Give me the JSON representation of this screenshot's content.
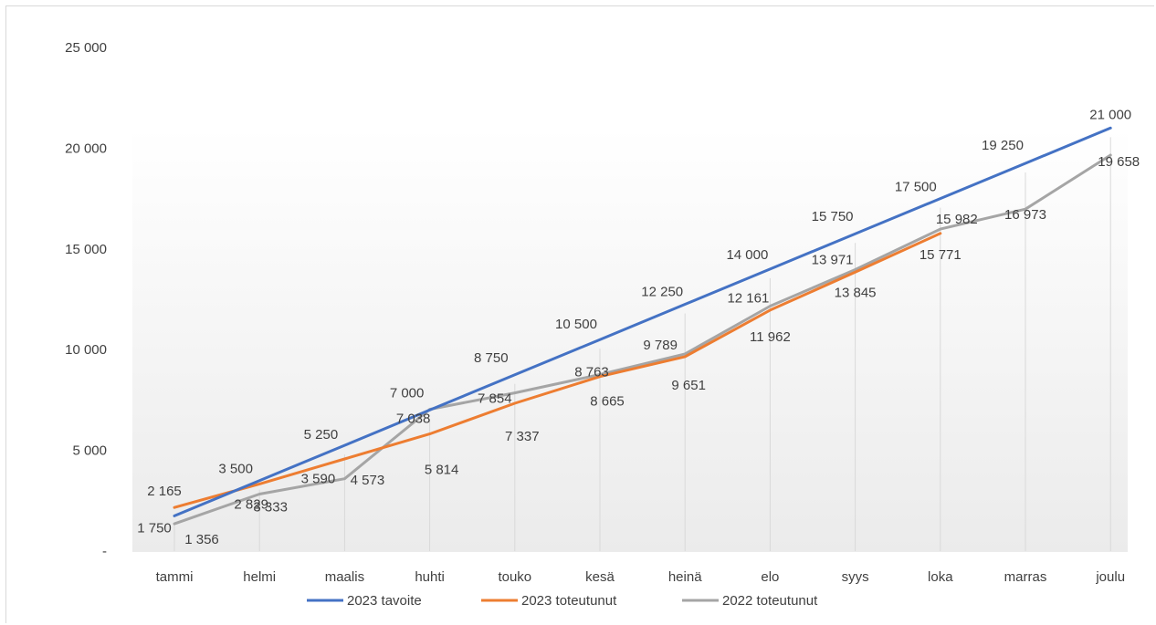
{
  "chart_data": {
    "type": "line",
    "categories": [
      "tammi",
      "helmi",
      "maalis",
      "huhti",
      "touko",
      "kesä",
      "heinä",
      "elo",
      "syys",
      "loka",
      "marras",
      "joulu"
    ],
    "ylim": [
      0,
      25000
    ],
    "yticks": [
      0,
      5000,
      10000,
      15000,
      20000,
      25000
    ],
    "ytick_labels": [
      "-",
      "5 000",
      "10 000",
      "15 000",
      "20 000",
      "25 000"
    ],
    "legend_position": "bottom",
    "grid": "vertical category lines",
    "series": [
      {
        "name": "2023 tavoite",
        "color": "#4472c4",
        "values": [
          1750,
          3500,
          5250,
          7000,
          8750,
          10500,
          12250,
          14000,
          15750,
          17500,
          19250,
          21000
        ],
        "labels": [
          "1 750",
          "3 500",
          "5 250",
          "7 000",
          "8 750",
          "10 500",
          "12 250",
          "14 000",
          "15 750",
          "17 500",
          "19 250",
          "21 000"
        ]
      },
      {
        "name": "2023 toteutunut",
        "color": "#ed7d31",
        "values": [
          2165,
          3333,
          4573,
          5814,
          7337,
          8665,
          9651,
          11962,
          13845,
          15771,
          null,
          null
        ],
        "labels": [
          "2 165",
          "3 333",
          "4 573",
          "5 814",
          "7 337",
          "8 665",
          "9 651",
          "11 962",
          "13 845",
          "15 771",
          "",
          ""
        ]
      },
      {
        "name": "2022 toteutunut",
        "color": "#a5a5a5",
        "values": [
          1356,
          2829,
          3590,
          7038,
          7854,
          8763,
          9789,
          12161,
          13971,
          15982,
          16973,
          19658
        ],
        "labels": [
          "1 356",
          "2 829",
          "3 590",
          "7 038",
          "7 854",
          "8 763",
          "9 789",
          "12 161",
          "13 971",
          "15 982",
          "16 973",
          "19 658"
        ]
      }
    ]
  }
}
